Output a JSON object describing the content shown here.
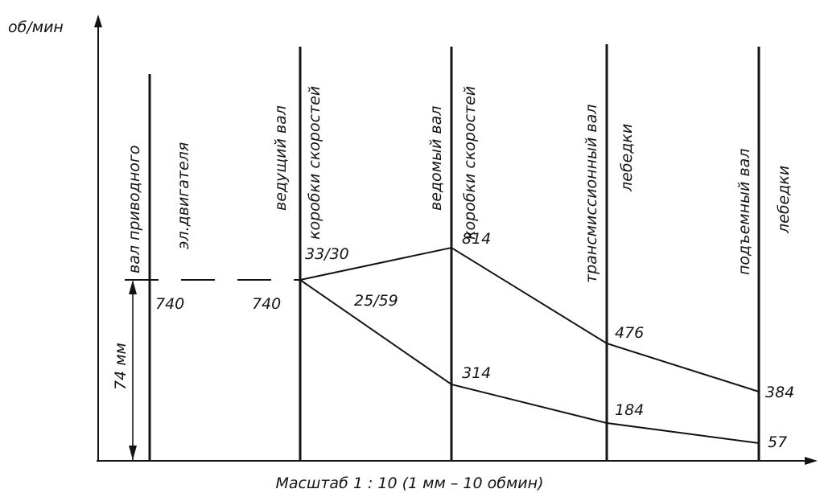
{
  "diagram": {
    "y_axis_label": "об/мин",
    "caption": "Масштаб 1 : 10 (1 мм – 10 обмин)",
    "dimension_label": "74 мм",
    "shaft_labels": [
      [
        "вал приводного",
        "эл.двигателя"
      ],
      [
        "ведущий вал",
        "коробки скоростей"
      ],
      [
        "ведомый вал",
        "коробки скоростей"
      ],
      [
        "трансмиссионный вал",
        "лебедки"
      ],
      [
        "подъемный вал",
        "лебедки"
      ]
    ],
    "speeds": {
      "motor": "740",
      "drive_shaft": "740",
      "driven_high": "814",
      "driven_low": "314",
      "transmission_high": "476",
      "transmission_low": "184",
      "lift_high": "384",
      "lift_low": "57"
    },
    "gear_ratios": {
      "upper": "33/30",
      "lower": "25/59"
    },
    "chains": [
      {
        "name": "upper",
        "rpm": [
          740,
          814,
          476,
          384
        ]
      },
      {
        "name": "lower",
        "rpm": [
          740,
          314,
          184,
          57
        ]
      }
    ]
  }
}
